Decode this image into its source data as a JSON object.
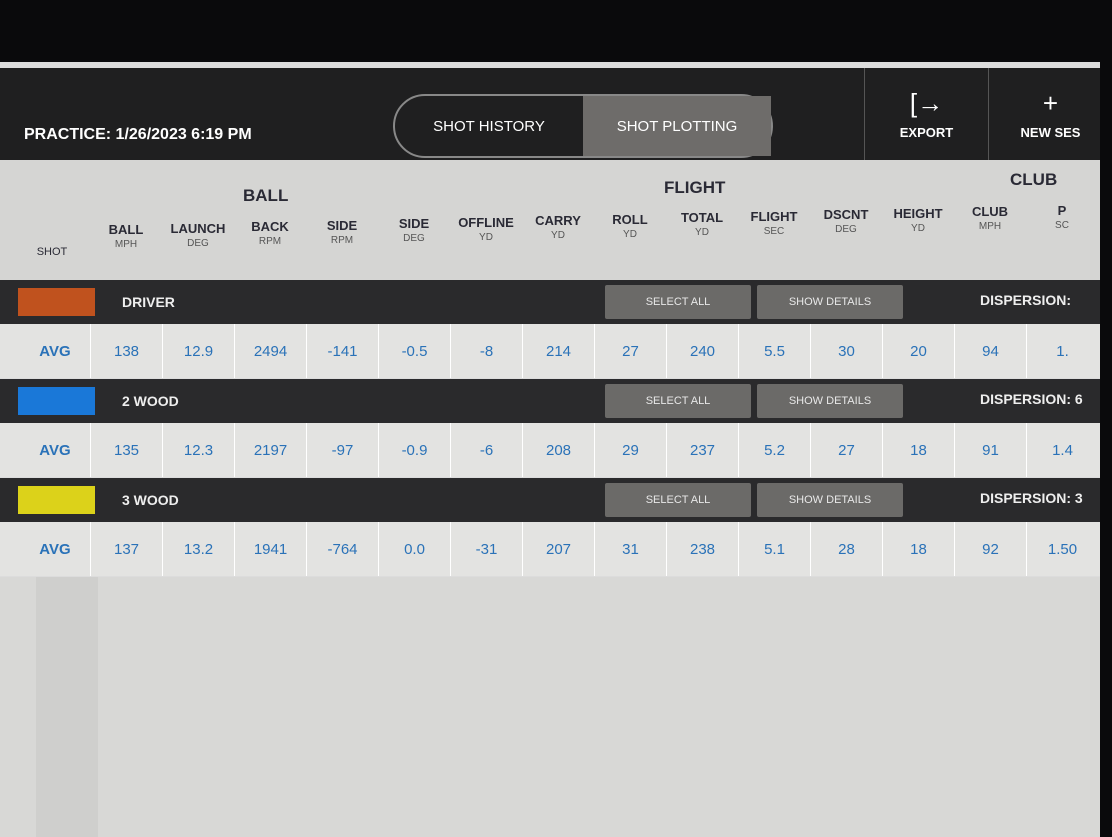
{
  "header": {
    "title": "PRACTICE: 1/26/2023 6:19 PM",
    "tabs": [
      {
        "label": "SHOT HISTORY",
        "active": false
      },
      {
        "label": "SHOT PLOTTING",
        "active": true
      }
    ],
    "export_label": "EXPORT",
    "new_session_label": "NEW SES"
  },
  "groups": {
    "ball": "BALL",
    "flight": "FLIGHT",
    "club": "CLUB"
  },
  "shot_label": "SHOT",
  "columns": [
    {
      "name": "BALL",
      "unit": "MPH"
    },
    {
      "name": "LAUNCH",
      "unit": "DEG"
    },
    {
      "name": "BACK",
      "unit": "RPM"
    },
    {
      "name": "SIDE",
      "unit": "RPM"
    },
    {
      "name": "SIDE",
      "unit": "DEG"
    },
    {
      "name": "OFFLINE",
      "unit": "YD"
    },
    {
      "name": "CARRY",
      "unit": "YD"
    },
    {
      "name": "ROLL",
      "unit": "YD"
    },
    {
      "name": "TOTAL",
      "unit": "YD"
    },
    {
      "name": "FLIGHT",
      "unit": "SEC"
    },
    {
      "name": "DSCNT",
      "unit": "DEG"
    },
    {
      "name": "HEIGHT",
      "unit": "YD"
    },
    {
      "name": "CLUB",
      "unit": "MPH"
    },
    {
      "name": "P",
      "unit": "SC"
    }
  ],
  "clubs": [
    {
      "name": "DRIVER",
      "color": "#c0521e",
      "select_all": "SELECT ALL",
      "show_details": "SHOW DETAILS",
      "dispersion": "DISPERSION:",
      "avg_label": "AVG",
      "values": [
        "138",
        "12.9",
        "2494",
        "-141",
        "-0.5",
        "-8",
        "214",
        "27",
        "240",
        "5.5",
        "30",
        "20",
        "94",
        "1."
      ]
    },
    {
      "name": "2 WOOD",
      "color": "#1a78d8",
      "select_all": "SELECT ALL",
      "show_details": "SHOW DETAILS",
      "dispersion": "DISPERSION: 6",
      "avg_label": "AVG",
      "values": [
        "135",
        "12.3",
        "2197",
        "-97",
        "-0.9",
        "-6",
        "208",
        "29",
        "237",
        "5.2",
        "27",
        "18",
        "91",
        "1.4"
      ]
    },
    {
      "name": "3 WOOD",
      "color": "#dcd21a",
      "select_all": "SELECT ALL",
      "show_details": "SHOW DETAILS",
      "dispersion": "DISPERSION: 3",
      "avg_label": "AVG",
      "values": [
        "137",
        "13.2",
        "1941",
        "-764",
        "0.0",
        "-31",
        "207",
        "31",
        "238",
        "5.1",
        "28",
        "18",
        "92",
        "1.50"
      ]
    }
  ]
}
